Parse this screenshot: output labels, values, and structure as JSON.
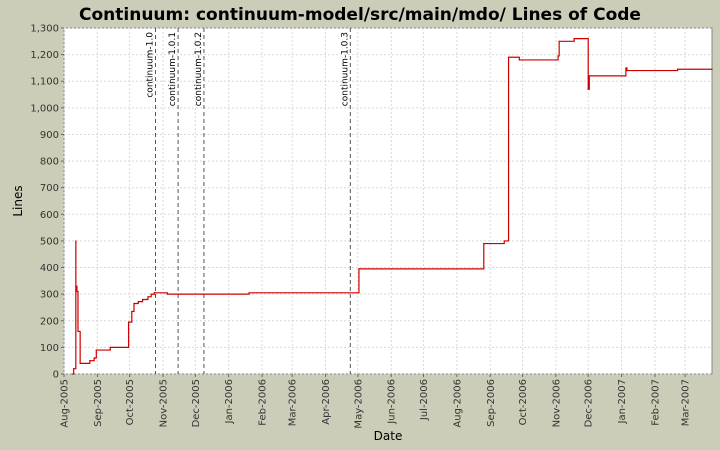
{
  "chart_data": {
    "type": "line",
    "title": "Continuum: continuum-model/src/main/mdo/ Lines of Code",
    "xlabel": "Date",
    "ylabel": "Lines",
    "ylim": [
      0,
      1300
    ],
    "xlim": [
      "2005-08-01",
      "2007-03-26"
    ],
    "grid": true,
    "line_style": "step",
    "colors": {
      "background": "#cccdb9",
      "plot_background": "#ffffff",
      "grid": "#d8d8d8",
      "series": "#cc0000",
      "marker_line": "#555555"
    },
    "y_ticks": [
      0,
      100,
      200,
      300,
      400,
      500,
      600,
      700,
      800,
      900,
      1000,
      1100,
      1200,
      1300
    ],
    "y_tick_labels": [
      "0",
      "100",
      "200",
      "300",
      "400",
      "500",
      "600",
      "700",
      "800",
      "900",
      "1,000",
      "1,100",
      "1,200",
      "1,300"
    ],
    "x_ticks": [
      {
        "date": "2005-08-01",
        "label": "Aug-2005"
      },
      {
        "date": "2005-09-01",
        "label": "Sep-2005"
      },
      {
        "date": "2005-10-01",
        "label": "Oct-2005"
      },
      {
        "date": "2005-11-01",
        "label": "Nov-2005"
      },
      {
        "date": "2005-12-01",
        "label": "Dec-2005"
      },
      {
        "date": "2006-01-01",
        "label": "Jan-2006"
      },
      {
        "date": "2006-02-01",
        "label": "Feb-2006"
      },
      {
        "date": "2006-03-01",
        "label": "Mar-2006"
      },
      {
        "date": "2006-04-01",
        "label": "Apr-2006"
      },
      {
        "date": "2006-05-01",
        "label": "May-2006"
      },
      {
        "date": "2006-06-01",
        "label": "Jun-2006"
      },
      {
        "date": "2006-07-01",
        "label": "Jul-2006"
      },
      {
        "date": "2006-08-01",
        "label": "Aug-2006"
      },
      {
        "date": "2006-09-01",
        "label": "Sep-2006"
      },
      {
        "date": "2006-10-01",
        "label": "Oct-2006"
      },
      {
        "date": "2006-11-01",
        "label": "Nov-2006"
      },
      {
        "date": "2006-12-01",
        "label": "Dec-2006"
      },
      {
        "date": "2007-01-01",
        "label": "Jan-2007"
      },
      {
        "date": "2007-02-01",
        "label": "Feb-2007"
      },
      {
        "date": "2007-03-01",
        "label": "Mar-2007"
      }
    ],
    "markers": [
      {
        "date": "2005-10-25",
        "label": "continuum-1.0"
      },
      {
        "date": "2005-11-15",
        "label": "continuum-1.0.1"
      },
      {
        "date": "2005-12-09",
        "label": "continuum-1.0.2"
      },
      {
        "date": "2006-04-24",
        "label": "continuum-1.0.3"
      }
    ],
    "series": [
      {
        "points": [
          [
            "2005-08-09",
            0
          ],
          [
            "2005-08-10",
            20
          ],
          [
            "2005-08-12",
            500
          ],
          [
            "2005-08-12",
            330
          ],
          [
            "2005-08-13",
            310
          ],
          [
            "2005-08-14",
            160
          ],
          [
            "2005-08-16",
            40
          ],
          [
            "2005-08-25",
            50
          ],
          [
            "2005-08-29",
            60
          ],
          [
            "2005-08-31",
            90
          ],
          [
            "2005-09-13",
            100
          ],
          [
            "2005-09-30",
            195
          ],
          [
            "2005-10-03",
            235
          ],
          [
            "2005-10-05",
            265
          ],
          [
            "2005-10-09",
            272
          ],
          [
            "2005-10-13",
            280
          ],
          [
            "2005-10-18",
            290
          ],
          [
            "2005-10-21",
            300
          ],
          [
            "2005-10-24",
            305
          ],
          [
            "2005-11-05",
            300
          ],
          [
            "2006-01-20",
            305
          ],
          [
            "2006-05-02",
            395
          ],
          [
            "2006-08-26",
            490
          ],
          [
            "2006-09-14",
            500
          ],
          [
            "2006-09-18",
            1190
          ],
          [
            "2006-09-28",
            1180
          ],
          [
            "2006-11-03",
            1195
          ],
          [
            "2006-11-04",
            1250
          ],
          [
            "2006-11-18",
            1260
          ],
          [
            "2006-12-01",
            1070
          ],
          [
            "2006-12-02",
            1120
          ],
          [
            "2007-01-05",
            1150
          ],
          [
            "2007-01-06",
            1140
          ],
          [
            "2007-02-22",
            1145
          ],
          [
            "2007-03-26",
            1145
          ]
        ]
      }
    ]
  }
}
